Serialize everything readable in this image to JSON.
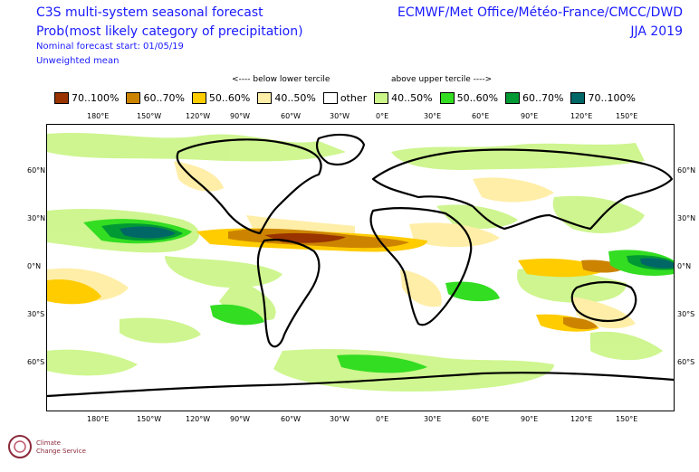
{
  "header": {
    "title_line1": "C3S multi-system seasonal forecast",
    "title_line2": "Prob(most likely category of precipitation)",
    "subtitle_start": "Nominal forecast start: 01/05/19",
    "subtitle_mean": "Unweighted mean",
    "centres": "ECMWF/Met Office/Météo-France/CMCC/DWD",
    "season": "JJA 2019"
  },
  "legend": {
    "below_note": "<---- below lower tercile",
    "above_note": "above upper tercile ---->",
    "items": [
      {
        "label": "70..100%",
        "color": "#993300"
      },
      {
        "label": "60..70%",
        "color": "#cc8400"
      },
      {
        "label": "50..60%",
        "color": "#ffcc00"
      },
      {
        "label": "40..50%",
        "color": "#ffeea8"
      },
      {
        "label": "other",
        "color": "#ffffff"
      },
      {
        "label": "40..50%",
        "color": "#ccf58a"
      },
      {
        "label": "50..60%",
        "color": "#33dd22"
      },
      {
        "label": "60..70%",
        "color": "#009933"
      },
      {
        "label": "70..100%",
        "color": "#006666"
      }
    ]
  },
  "axes": {
    "lon_ticks": [
      "180°E",
      "150°W",
      "120°W",
      "90°W",
      "60°W",
      "30°W",
      "0°E",
      "30°E",
      "60°E",
      "90°E",
      "120°E",
      "150°E"
    ],
    "lat_ticks": [
      "60°N",
      "30°N",
      "0°N",
      "30°S",
      "60°S"
    ]
  },
  "logo": {
    "name": "Climate Change Service",
    "line1": "Climate",
    "line2": "Change Service"
  }
}
